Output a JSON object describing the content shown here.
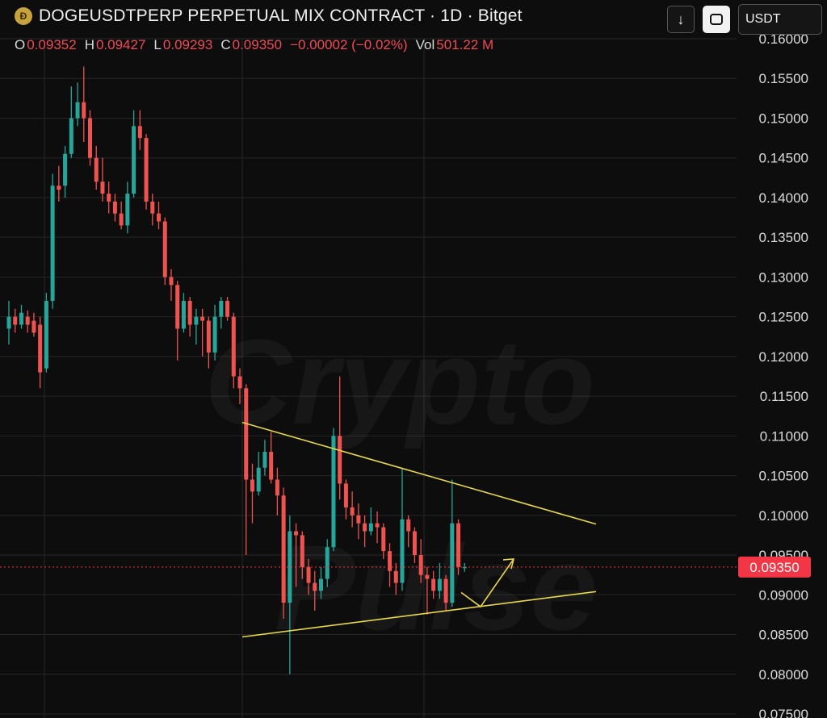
{
  "header": {
    "logo_text": "Ð",
    "title": "DOGEUSDTPERP PERPETUAL MIX CONTRACT · 1D · Bitget",
    "ohlc": {
      "o_label": "O",
      "o_value": "0.09352",
      "h_label": "H",
      "h_value": "0.09427",
      "l_label": "L",
      "l_value": "0.09293",
      "c_label": "C",
      "c_value": "0.09350",
      "change": "−0.00002 (−0.02%)",
      "vol_label": "Vol",
      "vol_value": "501.22 M"
    }
  },
  "toolbar": {
    "download_icon": "arrow-down-icon",
    "mode_icon": "square-icon",
    "currency": "USDT"
  },
  "watermark": {
    "line1": "Crypto",
    "line2": "Pulse"
  },
  "colors": {
    "background": "#0d0d0d",
    "up": "#26a69a",
    "down": "#ef5350",
    "trendline": "#e8d84a",
    "price_tag": "#f23645",
    "grid": "#262626"
  },
  "chart_data": {
    "type": "candlestick",
    "ylim": [
      0.075,
      0.16
    ],
    "y_ticks": [
      "0.07500",
      "0.08000",
      "0.08500",
      "0.09000",
      "0.09500",
      "0.10000",
      "0.10500",
      "0.11000",
      "0.11500",
      "0.12000",
      "0.12500",
      "0.13000",
      "0.13500",
      "0.14000",
      "0.14500",
      "0.15000",
      "0.15500",
      "0.16000"
    ],
    "last_price": "0.09350",
    "last_price_value": 0.0935,
    "grid": true,
    "candles": [
      [
        0.1235,
        0.125,
        0.127,
        0.1215
      ],
      [
        0.125,
        0.124,
        0.126,
        0.123
      ],
      [
        0.124,
        0.1255,
        0.1265,
        0.1235
      ],
      [
        0.125,
        0.124,
        0.1258,
        0.123
      ],
      [
        0.1245,
        0.123,
        0.1255,
        0.1225
      ],
      [
        0.124,
        0.118,
        0.125,
        0.116
      ],
      [
        0.1185,
        0.127,
        0.128,
        0.118
      ],
      [
        0.127,
        0.1415,
        0.143,
        0.126
      ],
      [
        0.1415,
        0.141,
        0.144,
        0.1395
      ],
      [
        0.1415,
        0.1455,
        0.1465,
        0.14
      ],
      [
        0.1455,
        0.15,
        0.154,
        0.145
      ],
      [
        0.15,
        0.152,
        0.1545,
        0.149
      ],
      [
        0.152,
        0.15,
        0.1565,
        0.147
      ],
      [
        0.15,
        0.145,
        0.151,
        0.144
      ],
      [
        0.145,
        0.142,
        0.1465,
        0.141
      ],
      [
        0.142,
        0.1405,
        0.145,
        0.1395
      ],
      [
        0.1405,
        0.1395,
        0.142,
        0.138
      ],
      [
        0.1395,
        0.138,
        0.1405,
        0.137
      ],
      [
        0.138,
        0.1365,
        0.1395,
        0.136
      ],
      [
        0.1365,
        0.1405,
        0.142,
        0.1355
      ],
      [
        0.1405,
        0.149,
        0.151,
        0.14
      ],
      [
        0.149,
        0.1475,
        0.151,
        0.146
      ],
      [
        0.1475,
        0.1395,
        0.148,
        0.1385
      ],
      [
        0.1395,
        0.138,
        0.1405,
        0.1365
      ],
      [
        0.138,
        0.137,
        0.1395,
        0.136
      ],
      [
        0.137,
        0.13,
        0.1375,
        0.129
      ],
      [
        0.13,
        0.129,
        0.131,
        0.127
      ],
      [
        0.129,
        0.1235,
        0.1295,
        0.1195
      ],
      [
        0.1235,
        0.127,
        0.128,
        0.123
      ],
      [
        0.127,
        0.124,
        0.1275,
        0.1225
      ],
      [
        0.124,
        0.125,
        0.126,
        0.1215
      ],
      [
        0.125,
        0.1245,
        0.126,
        0.12
      ],
      [
        0.1245,
        0.1205,
        0.125,
        0.1185
      ],
      [
        0.1205,
        0.125,
        0.1265,
        0.1195
      ],
      [
        0.125,
        0.127,
        0.1275,
        0.1235
      ],
      [
        0.127,
        0.125,
        0.1275,
        0.1245
      ],
      [
        0.125,
        0.1175,
        0.1255,
        0.116
      ],
      [
        0.1175,
        0.116,
        0.1185,
        0.114
      ],
      [
        0.116,
        0.1045,
        0.1165,
        0.095
      ],
      [
        0.1045,
        0.103,
        0.1065,
        0.099
      ],
      [
        0.103,
        0.106,
        0.108,
        0.1025
      ],
      [
        0.106,
        0.108,
        0.1095,
        0.105
      ],
      [
        0.108,
        0.1045,
        0.1105,
        0.104
      ],
      [
        0.1045,
        0.1025,
        0.106,
        0.1
      ],
      [
        0.1025,
        0.089,
        0.1035,
        0.087
      ],
      [
        0.089,
        0.098,
        0.1,
        0.08
      ],
      [
        0.098,
        0.0975,
        0.099,
        0.091
      ],
      [
        0.0975,
        0.0935,
        0.098,
        0.092
      ],
      [
        0.0935,
        0.0915,
        0.0945,
        0.09
      ],
      [
        0.0915,
        0.0905,
        0.093,
        0.088
      ],
      [
        0.0905,
        0.092,
        0.0935,
        0.0895
      ],
      [
        0.092,
        0.096,
        0.097,
        0.091
      ],
      [
        0.096,
        0.11,
        0.111,
        0.0955
      ],
      [
        0.11,
        0.104,
        0.1175,
        0.102
      ],
      [
        0.104,
        0.101,
        0.1045,
        0.0995
      ],
      [
        0.101,
        0.1,
        0.103,
        0.0985
      ],
      [
        0.1,
        0.099,
        0.1015,
        0.097
      ],
      [
        0.099,
        0.098,
        0.1,
        0.096
      ],
      [
        0.098,
        0.099,
        0.101,
        0.0975
      ],
      [
        0.099,
        0.0985,
        0.1005,
        0.0965
      ],
      [
        0.0985,
        0.0955,
        0.099,
        0.0945
      ],
      [
        0.0955,
        0.093,
        0.0965,
        0.091
      ],
      [
        0.093,
        0.0915,
        0.094,
        0.09
      ],
      [
        0.0915,
        0.0995,
        0.106,
        0.0905
      ],
      [
        0.0995,
        0.098,
        0.1,
        0.096
      ],
      [
        0.098,
        0.095,
        0.0985,
        0.094
      ],
      [
        0.095,
        0.0925,
        0.097,
        0.0915
      ],
      [
        0.0925,
        0.092,
        0.0935,
        0.0875
      ],
      [
        0.092,
        0.0905,
        0.093,
        0.0895
      ],
      [
        0.0905,
        0.092,
        0.094,
        0.0895
      ],
      [
        0.092,
        0.089,
        0.0925,
        0.088
      ],
      [
        0.089,
        0.099,
        0.1045,
        0.0885
      ],
      [
        0.099,
        0.0935,
        0.0995,
        0.0925
      ],
      [
        0.0935,
        0.0935,
        0.094,
        0.0929
      ]
    ],
    "annotations": {
      "upper_trendline": [
        [
          0.1117,
          0
        ],
        [
          0.0989,
          1
        ]
      ],
      "lower_trendline": [
        [
          0.0847,
          0
        ],
        [
          0.0904,
          1
        ]
      ],
      "arrow": [
        0.0903,
        0.0885,
        0.0945
      ]
    }
  }
}
